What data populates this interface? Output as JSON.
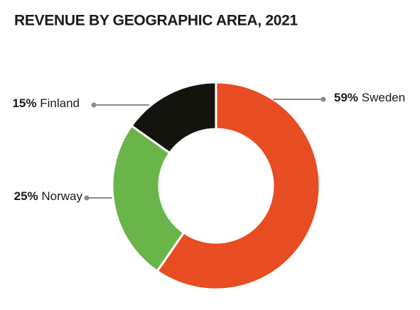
{
  "chart_data": {
    "type": "donut",
    "title": "REVENUE BY GEOGRAPHIC AREA, 2021",
    "categories": [
      "Sweden",
      "Norway",
      "Finland"
    ],
    "values": [
      59,
      25,
      15
    ],
    "value_labels": [
      "59%",
      "25%",
      "15%"
    ],
    "colors": [
      "#e84c22",
      "#6ab54a",
      "#14140f"
    ]
  }
}
